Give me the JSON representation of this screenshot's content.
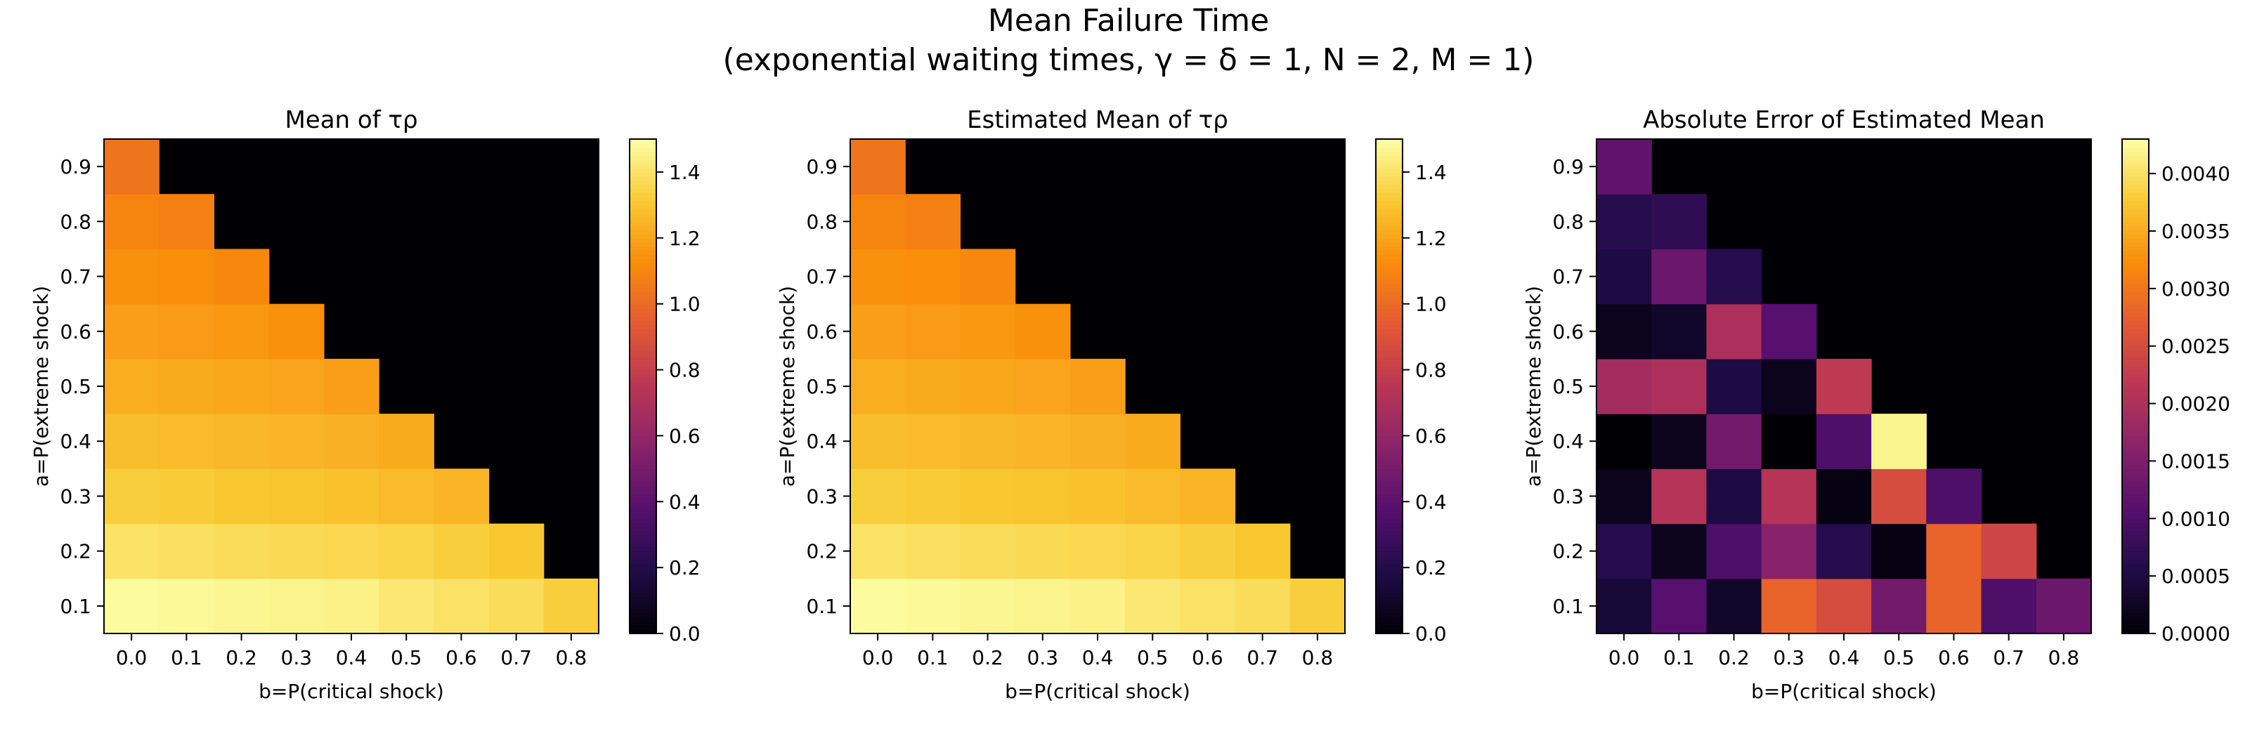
{
  "figure": {
    "title_line1": "Mean Failure Time",
    "title_line2": "(exponential waiting times, γ = δ = 1, N = 2, M = 1)"
  },
  "colormap": "inferno",
  "chart_data": [
    {
      "type": "heatmap",
      "title": "Mean of τρ",
      "xlabel": "b=P(critical shock)",
      "ylabel": "a=P(extreme shock)",
      "x": [
        0.0,
        0.1,
        0.2,
        0.3,
        0.4,
        0.5,
        0.6,
        0.7,
        0.8
      ],
      "y": [
        0.1,
        0.2,
        0.3,
        0.4,
        0.5,
        0.6,
        0.7,
        0.8,
        0.9
      ],
      "colorbar": {
        "min": 0.0,
        "max": 1.5,
        "ticks": [
          "0.0",
          "0.2",
          "0.4",
          "0.6",
          "0.8",
          "1.0",
          "1.2",
          "1.4"
        ]
      },
      "values": [
        [
          1.49,
          1.48,
          1.47,
          1.46,
          1.45,
          1.42,
          1.4,
          1.38,
          1.33
        ],
        [
          1.4,
          1.39,
          1.38,
          1.37,
          1.36,
          1.35,
          1.33,
          1.31,
          null
        ],
        [
          1.33,
          1.32,
          1.31,
          1.3,
          1.29,
          1.27,
          1.25,
          null,
          null
        ],
        [
          1.28,
          1.27,
          1.26,
          1.25,
          1.24,
          1.22,
          null,
          null,
          null
        ],
        [
          1.23,
          1.22,
          1.21,
          1.2,
          1.18,
          null,
          null,
          null,
          null
        ],
        [
          1.18,
          1.17,
          1.16,
          1.14,
          null,
          null,
          null,
          null,
          null
        ],
        [
          1.14,
          1.13,
          1.11,
          null,
          null,
          null,
          null,
          null,
          null
        ],
        [
          1.1,
          1.08,
          null,
          null,
          null,
          null,
          null,
          null,
          null
        ],
        [
          1.04,
          null,
          null,
          null,
          null,
          null,
          null,
          null,
          null
        ]
      ]
    },
    {
      "type": "heatmap",
      "title": "Estimated Mean of τρ",
      "xlabel": "b=P(critical shock)",
      "ylabel": "a=P(extreme shock)",
      "x": [
        0.0,
        0.1,
        0.2,
        0.3,
        0.4,
        0.5,
        0.6,
        0.7,
        0.8
      ],
      "y": [
        0.1,
        0.2,
        0.3,
        0.4,
        0.5,
        0.6,
        0.7,
        0.8,
        0.9
      ],
      "colorbar": {
        "min": 0.0,
        "max": 1.5,
        "ticks": [
          "0.0",
          "0.2",
          "0.4",
          "0.6",
          "0.8",
          "1.0",
          "1.2",
          "1.4"
        ]
      },
      "values": [
        [
          1.49,
          1.48,
          1.47,
          1.46,
          1.45,
          1.42,
          1.4,
          1.38,
          1.33
        ],
        [
          1.4,
          1.39,
          1.38,
          1.37,
          1.36,
          1.35,
          1.33,
          1.31,
          null
        ],
        [
          1.33,
          1.32,
          1.31,
          1.3,
          1.29,
          1.27,
          1.25,
          null,
          null
        ],
        [
          1.28,
          1.27,
          1.26,
          1.25,
          1.24,
          1.22,
          null,
          null,
          null
        ],
        [
          1.23,
          1.22,
          1.21,
          1.2,
          1.18,
          null,
          null,
          null,
          null
        ],
        [
          1.18,
          1.17,
          1.16,
          1.14,
          null,
          null,
          null,
          null,
          null
        ],
        [
          1.14,
          1.13,
          1.11,
          null,
          null,
          null,
          null,
          null,
          null
        ],
        [
          1.1,
          1.08,
          null,
          null,
          null,
          null,
          null,
          null,
          null
        ],
        [
          1.04,
          null,
          null,
          null,
          null,
          null,
          null,
          null,
          null
        ]
      ]
    },
    {
      "type": "heatmap",
      "title": "Absolute Error of Estimated Mean",
      "xlabel": "b=P(critical shock)",
      "ylabel": "a=P(extreme shock)",
      "x": [
        0.0,
        0.1,
        0.2,
        0.3,
        0.4,
        0.5,
        0.6,
        0.7,
        0.8
      ],
      "y": [
        0.1,
        0.2,
        0.3,
        0.4,
        0.5,
        0.6,
        0.7,
        0.8,
        0.9
      ],
      "colorbar": {
        "min": 0.0,
        "max": 0.0043,
        "ticks": [
          "0.0000",
          "0.0005",
          "0.0010",
          "0.0015",
          "0.0020",
          "0.0025",
          "0.0030",
          "0.0035",
          "0.0040"
        ]
      },
      "values": [
        [
          0.0004,
          0.0011,
          0.0003,
          0.0028,
          0.0025,
          0.0014,
          0.0028,
          0.001,
          0.0013
        ],
        [
          0.0006,
          0.0002,
          0.001,
          0.0016,
          0.0006,
          0.0001,
          0.0028,
          0.0024,
          null
        ],
        [
          0.0002,
          0.0021,
          0.0005,
          0.0021,
          0.0001,
          0.0025,
          0.001,
          null,
          null
        ],
        [
          0.0,
          0.0002,
          0.0014,
          0.0,
          0.001,
          0.0042,
          null,
          null,
          null
        ],
        [
          0.0019,
          0.002,
          0.0005,
          0.0002,
          0.0022,
          null,
          null,
          null,
          null
        ],
        [
          0.0002,
          0.0003,
          0.002,
          0.0011,
          null,
          null,
          null,
          null,
          null
        ],
        [
          0.0005,
          0.0013,
          0.0006,
          null,
          null,
          null,
          null,
          null,
          null
        ],
        [
          0.0006,
          0.0007,
          null,
          null,
          null,
          null,
          null,
          null,
          null
        ],
        [
          0.0012,
          null,
          null,
          null,
          null,
          null,
          null,
          null,
          null
        ]
      ]
    }
  ]
}
